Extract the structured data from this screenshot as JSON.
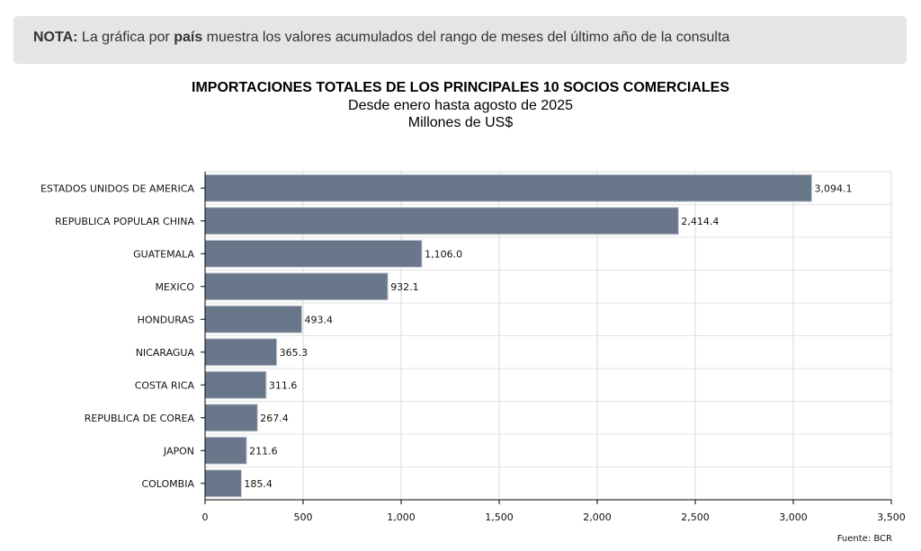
{
  "note": {
    "prefix": "NOTA:",
    "text1": " La gráfica por ",
    "bold": "país",
    "text2": " muestra los valores acumulados del rango de meses del último año de la consulta"
  },
  "chart_data": {
    "type": "bar",
    "orientation": "horizontal",
    "title": "IMPORTACIONES TOTALES DE LOS PRINCIPALES 10 SOCIOS COMERCIALES",
    "subtitle": "Desde enero hasta agosto de 2025",
    "unit": "Millones de US$",
    "categories": [
      "ESTADOS UNIDOS DE AMERICA",
      "REPUBLICA POPULAR CHINA",
      "GUATEMALA",
      "MEXICO",
      "HONDURAS",
      "NICARAGUA",
      "COSTA RICA",
      "REPUBLICA DE COREA",
      "JAPON",
      "COLOMBIA"
    ],
    "values": [
      3094.1,
      2414.4,
      1106.0,
      932.1,
      493.4,
      365.3,
      311.6,
      267.4,
      211.6,
      185.4
    ],
    "value_labels": [
      "3,094.1",
      "2,414.4",
      "1,106.0",
      "932.1",
      "493.4",
      "365.3",
      "311.6",
      "267.4",
      "211.6",
      "185.4"
    ],
    "xlim": [
      0,
      3500
    ],
    "xticks": [
      0,
      500,
      1000,
      1500,
      2000,
      2500,
      3000,
      3500
    ],
    "xtick_labels": [
      "0",
      "500",
      "1,000",
      "1,500",
      "2,000",
      "2,500",
      "3,000",
      "3,500"
    ],
    "grid": true,
    "bar_color": "#687789",
    "source": "Fuente: BCR"
  }
}
